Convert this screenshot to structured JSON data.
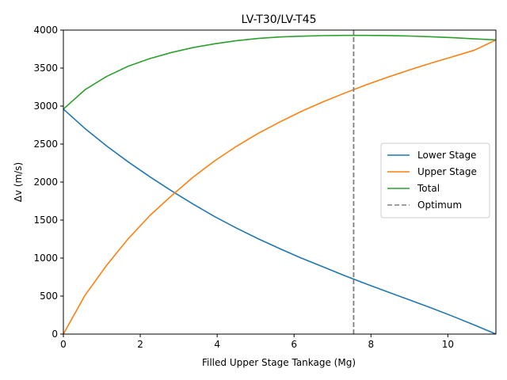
{
  "chart_data": {
    "type": "line",
    "title": "LV-T30/LV-T45",
    "xlabel": "Filled Upper Stage Tankage (Mg)",
    "ylabel": "Δv (m/s)",
    "xlim": [
      0,
      11.25
    ],
    "ylim": [
      0,
      4000
    ],
    "xticks": [
      0,
      2,
      4,
      6,
      8,
      10
    ],
    "yticks": [
      0,
      500,
      1000,
      1500,
      2000,
      2500,
      3000,
      3500,
      4000
    ],
    "grid": false,
    "legend_position": "center-right",
    "series": [
      {
        "name": "Lower Stage",
        "color": "#1f77b4",
        "style": "solid",
        "x": [
          0,
          0.5625,
          1.125,
          1.6875,
          2.25,
          2.8125,
          3.375,
          3.9375,
          4.5,
          5.0625,
          5.625,
          6.1875,
          6.75,
          7.3125,
          7.875,
          8.4375,
          9.0,
          9.5625,
          10.125,
          10.6875,
          11.25
        ],
        "y": [
          2960,
          2705,
          2475,
          2265,
          2070,
          1885,
          1710,
          1545,
          1395,
          1255,
          1125,
          1000,
          885,
          770,
          660,
          555,
          450,
          345,
          235,
          120,
          0
        ]
      },
      {
        "name": "Upper Stage",
        "color": "#ff7f0e",
        "style": "solid",
        "x": [
          0,
          0.5625,
          1.125,
          1.6875,
          2.25,
          2.8125,
          3.375,
          3.9375,
          4.5,
          5.0625,
          5.625,
          6.1875,
          6.75,
          7.3125,
          7.875,
          8.4375,
          9.0,
          9.5625,
          10.125,
          10.6875,
          11.25
        ],
        "y": [
          0,
          510,
          905,
          1255,
          1560,
          1820,
          2065,
          2280,
          2470,
          2640,
          2790,
          2930,
          3055,
          3170,
          3280,
          3380,
          3475,
          3565,
          3650,
          3735,
          3870
        ]
      },
      {
        "name": "Total",
        "color": "#2ca02c",
        "style": "solid",
        "x": [
          0,
          0.5625,
          1.125,
          1.6875,
          2.25,
          2.8125,
          3.375,
          3.9375,
          4.5,
          5.0625,
          5.625,
          6.1875,
          6.75,
          7.3125,
          7.875,
          8.4375,
          9.0,
          9.5625,
          10.125,
          10.6875,
          11.25
        ],
        "y": [
          2960,
          3215,
          3390,
          3525,
          3625,
          3705,
          3770,
          3820,
          3860,
          3890,
          3910,
          3920,
          3927,
          3930,
          3930,
          3928,
          3922,
          3912,
          3900,
          3885,
          3870
        ]
      },
      {
        "name": "Optimum",
        "color": "#7f7f7f",
        "style": "dashed",
        "vertical_x": 7.55
      }
    ]
  }
}
